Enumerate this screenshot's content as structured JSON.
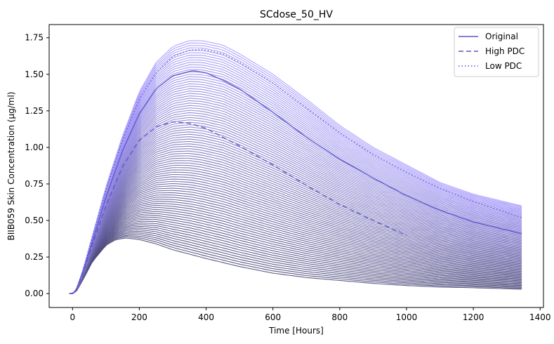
{
  "chart_data": {
    "type": "line",
    "title": "SCdose_50_HV",
    "xlabel": "Time [Hours]",
    "ylabel": "BIIB059 Skin Concentration (µg/ml)",
    "xlim": [
      -70,
      1410
    ],
    "ylim": [
      -0.095,
      1.84
    ],
    "xticks": [
      0,
      200,
      400,
      600,
      800,
      1000,
      1200,
      1400
    ],
    "yticks": [
      0.0,
      0.25,
      0.5,
      0.75,
      1.0,
      1.25,
      1.5,
      1.75
    ],
    "xtick_labels": [
      "0",
      "200",
      "400",
      "600",
      "800",
      "1000",
      "1200",
      "1400"
    ],
    "ytick_labels": [
      "0.00",
      "0.25",
      "0.50",
      "0.75",
      "1.00",
      "1.25",
      "1.50",
      "1.75"
    ],
    "grid": false,
    "legend_position": "top-right",
    "band": {
      "description_of_shading": "family of simulated curves from lowest to highest",
      "lower": {
        "x": [
          -10,
          0,
          10,
          30,
          60,
          100,
          130,
          160,
          200,
          250,
          300,
          400,
          500,
          600,
          700,
          800,
          900,
          1000,
          1100,
          1200,
          1345
        ],
        "y": [
          0.0,
          0.0,
          0.01,
          0.09,
          0.22,
          0.33,
          0.37,
          0.38,
          0.37,
          0.34,
          0.3,
          0.24,
          0.185,
          0.14,
          0.11,
          0.09,
          0.07,
          0.055,
          0.045,
          0.04,
          0.03
        ]
      },
      "upper": {
        "x": [
          -10,
          0,
          10,
          30,
          60,
          100,
          150,
          200,
          250,
          300,
          350,
          390,
          450,
          500,
          600,
          700,
          800,
          900,
          1000,
          1100,
          1200,
          1345
        ],
        "y": [
          0.0,
          0.0,
          0.02,
          0.15,
          0.4,
          0.73,
          1.08,
          1.38,
          1.58,
          1.69,
          1.73,
          1.73,
          1.7,
          1.64,
          1.5,
          1.33,
          1.15,
          1.0,
          0.88,
          0.76,
          0.68,
          0.6
        ]
      },
      "n_curves": 90,
      "color_low": "#4b4879",
      "color_high": "#a89cff"
    },
    "series": [
      {
        "name": "Original",
        "style": "solid",
        "x": [
          -10,
          0,
          10,
          30,
          60,
          100,
          150,
          200,
          250,
          300,
          360,
          400,
          450,
          500,
          600,
          700,
          800,
          900,
          1000,
          1100,
          1200,
          1345
        ],
        "y": [
          0.0,
          0.0,
          0.02,
          0.14,
          0.36,
          0.66,
          0.98,
          1.23,
          1.4,
          1.49,
          1.525,
          1.51,
          1.46,
          1.4,
          1.24,
          1.07,
          0.92,
          0.79,
          0.67,
          0.57,
          0.49,
          0.41
        ]
      },
      {
        "name": "High PDC",
        "style": "dashed",
        "x": [
          -10,
          0,
          10,
          30,
          60,
          100,
          150,
          200,
          250,
          300,
          350,
          400,
          500,
          600,
          700,
          800,
          900,
          1000
        ],
        "y": [
          0.0,
          0.0,
          0.02,
          0.13,
          0.34,
          0.6,
          0.87,
          1.05,
          1.14,
          1.175,
          1.165,
          1.13,
          1.01,
          0.88,
          0.74,
          0.61,
          0.5,
          0.4
        ]
      },
      {
        "name": "Low PDC",
        "style": "dotted",
        "x": [
          -10,
          0,
          10,
          30,
          60,
          100,
          150,
          200,
          250,
          300,
          350,
          390,
          450,
          500,
          600,
          700,
          800,
          900,
          1000,
          1100,
          1200,
          1345
        ],
        "y": [
          0.0,
          0.0,
          0.02,
          0.15,
          0.39,
          0.71,
          1.05,
          1.33,
          1.51,
          1.62,
          1.665,
          1.67,
          1.64,
          1.58,
          1.44,
          1.27,
          1.1,
          0.95,
          0.83,
          0.72,
          0.63,
          0.52
        ]
      }
    ],
    "legend": [
      "Original",
      "High PDC",
      "Low PDC"
    ],
    "series_color": "#5b57c9"
  }
}
